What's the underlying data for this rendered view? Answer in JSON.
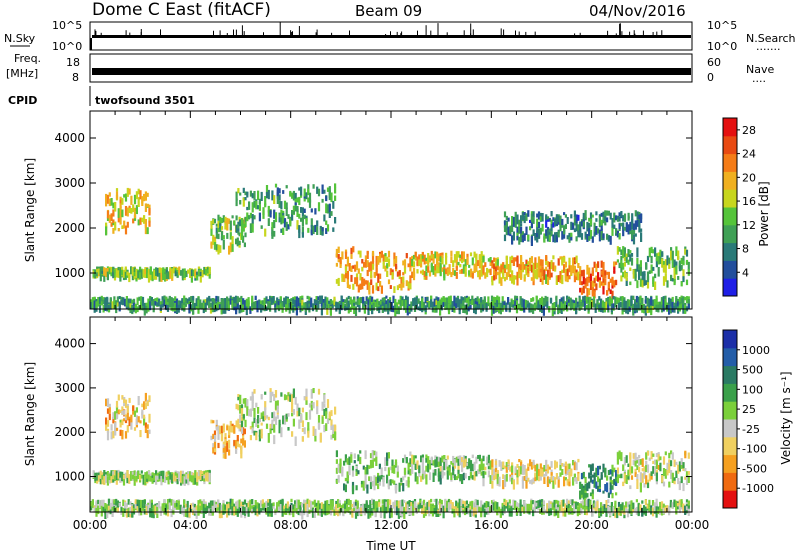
{
  "header": {
    "station": "Dome C East (fitACF)",
    "beam": "Beam 09",
    "date": "04/Nov/2016",
    "cpid_label": "CPID",
    "cpid_value": "twofsound 3501"
  },
  "strip_nsky": {
    "left_label": "N.Sky",
    "right_label": "N.Search",
    "right_dots": ".......",
    "left_ticks": [
      "10^5",
      "10^0"
    ],
    "right_ticks": [
      "10^5",
      "10^0"
    ],
    "color": "#000000"
  },
  "strip_freq": {
    "left_label_top": "Freq.",
    "left_label_unit": "[MHz]",
    "right_label": "Nave",
    "right_dots": "....",
    "left_ticks": [
      "18",
      "8"
    ],
    "right_ticks": [
      "60",
      "0"
    ]
  },
  "chart_data": [
    {
      "type": "heatmap",
      "name": "power",
      "ylabel": "Slant Range [km]",
      "xlabel": "",
      "ylim": [
        200,
        4600
      ],
      "xlim": [
        "00:00",
        "24:00"
      ],
      "y_ticks": [
        "1000",
        "2000",
        "3000",
        "4000"
      ],
      "colorbar": {
        "label": "Power [dB]",
        "ticks": [
          "4",
          "8",
          "12",
          "16",
          "20",
          "24",
          "28"
        ],
        "range": [
          0,
          30
        ],
        "colors": [
          "#1f1fe6",
          "#224e9c",
          "#2a7a78",
          "#3fa055",
          "#55c43a",
          "#c7d61e",
          "#f0b020",
          "#f57c17",
          "#e84a12",
          "#e41010"
        ]
      },
      "bands": [
        {
          "t0": 0.1,
          "t1": 4.8,
          "r0": 1000,
          "r1": 1150,
          "value": 14
        },
        {
          "t0": 0.6,
          "t1": 2.4,
          "r0": 2000,
          "r1": 2900,
          "value": 18
        },
        {
          "t0": 4.8,
          "t1": 6.2,
          "r0": 1600,
          "r1": 2300,
          "value": 14
        },
        {
          "t0": 5.8,
          "t1": 9.8,
          "r0": 1900,
          "r1": 3000,
          "value": 10
        },
        {
          "t0": 9.8,
          "t1": 10.6,
          "r0": 700,
          "r1": 1600,
          "value": 22
        },
        {
          "t0": 10.6,
          "t1": 12.8,
          "r0": 700,
          "r1": 1500,
          "value": 20
        },
        {
          "t0": 12.8,
          "t1": 16.0,
          "r0": 1000,
          "r1": 1500,
          "value": 18
        },
        {
          "t0": 16.0,
          "t1": 19.5,
          "r0": 900,
          "r1": 1400,
          "value": 20
        },
        {
          "t0": 19.5,
          "t1": 21.0,
          "r0": 600,
          "r1": 1300,
          "value": 24
        },
        {
          "t0": 21.0,
          "t1": 23.9,
          "r0": 800,
          "r1": 1600,
          "value": 12
        },
        {
          "t0": 16.5,
          "t1": 22.0,
          "r0": 1800,
          "r1": 2400,
          "value": 8
        },
        {
          "t0": 0.0,
          "t1": 23.9,
          "r0": 250,
          "r1": 500,
          "value": 10
        }
      ]
    },
    {
      "type": "heatmap",
      "name": "velocity",
      "ylabel": "Slant Range [km]",
      "xlabel": "Time UT",
      "ylim": [
        200,
        4600
      ],
      "xlim": [
        "00:00",
        "24:00"
      ],
      "y_ticks": [
        "1000",
        "2000",
        "3000",
        "4000"
      ],
      "x_ticks": [
        "00:00",
        "04:00",
        "08:00",
        "12:00",
        "16:00",
        "20:00",
        "00:00"
      ],
      "colorbar": {
        "label": "Velocity [m s⁻¹]",
        "ticks": [
          "1000",
          "500",
          "100",
          "25",
          "-25",
          "-100",
          "-500",
          "-1000"
        ],
        "range": [
          -1000,
          1000
        ],
        "colors": [
          "#1c2fa8",
          "#235da8",
          "#2a7a63",
          "#3aa04a",
          "#7bd03a",
          "#c8c8c8",
          "#f0d060",
          "#f5a020",
          "#f06a10",
          "#e41010"
        ]
      },
      "bands": [
        {
          "t0": 0.1,
          "t1": 4.8,
          "r0": 1000,
          "r1": 1150,
          "value": 0
        },
        {
          "t0": 0.6,
          "t1": 2.4,
          "r0": 2000,
          "r1": 2900,
          "value": -300
        },
        {
          "t0": 4.8,
          "t1": 6.2,
          "r0": 1600,
          "r1": 2300,
          "value": -400
        },
        {
          "t0": 5.8,
          "t1": 9.8,
          "r0": 1900,
          "r1": 3000,
          "value": 0
        },
        {
          "t0": 9.8,
          "t1": 12.8,
          "r0": 800,
          "r1": 1600,
          "value": 150
        },
        {
          "t0": 12.8,
          "t1": 16.0,
          "r0": 1000,
          "r1": 1500,
          "value": 80
        },
        {
          "t0": 16.0,
          "t1": 19.5,
          "r0": 900,
          "r1": 1400,
          "value": -200
        },
        {
          "t0": 19.5,
          "t1": 21.0,
          "r0": 600,
          "r1": 1300,
          "value": 400
        },
        {
          "t0": 21.0,
          "t1": 23.9,
          "r0": 800,
          "r1": 1600,
          "value": -80
        },
        {
          "t0": 0.0,
          "t1": 23.9,
          "r0": 250,
          "r1": 500,
          "value": 60
        }
      ]
    }
  ]
}
